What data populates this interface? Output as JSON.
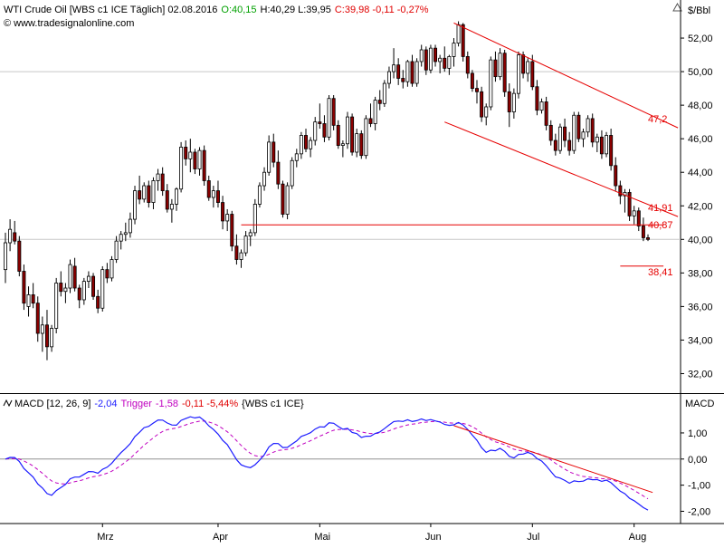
{
  "header": {
    "name": "WTI Crude Oil [WBS c1 ICE Täglich] 02.08.2016",
    "open": "O:40,15",
    "hl": "H:40,29 L:39,95",
    "close_change": "C:39,98 -0,11 -0,27%",
    "website": "© www.tradesignalonline.com",
    "unit": "$/Bbl"
  },
  "macd_header": {
    "label": "MACD [12, 26, 9]",
    "value": "-2,04",
    "trigger_label": "Trigger",
    "trigger_value": "-1,58",
    "change": "-0,11 -5,44%",
    "source": "{WBS c1 ICE}",
    "axis_title": "MACD"
  },
  "colors": {
    "bull": "#ffffff",
    "bear": "#8b0000",
    "candle_edge": "#000000",
    "trendline": "#e60000",
    "macd_line": "#1c1cff",
    "trigger_line": "#c000c0",
    "header_green": "#00a000",
    "header_red": "#e00000",
    "grid": "#c8c8c8"
  },
  "chart_data": [
    {
      "type": "candlestick",
      "title": "WTI Crude Oil [WBS c1 ICE Täglich] 02.08.2016",
      "ylabel": "$/Bbl",
      "ylim": [
        31,
        54
      ],
      "y_ticks": [
        "32,00",
        "34,00",
        "36,00",
        "38,00",
        "40,00",
        "42,00",
        "44,00",
        "46,00",
        "48,00",
        "50,00",
        "52,00"
      ],
      "x_ticks": [
        "Mrz",
        "Apr",
        "Mai",
        "Jun",
        "Jul",
        "Aug"
      ],
      "grid_lines_at": [
        40,
        50
      ],
      "annotations": [
        "47,2",
        "41,91",
        "40,87",
        "38,41"
      ],
      "candles": [
        [
          38.2,
          40.4,
          37.4,
          39.8
        ],
        [
          39.8,
          41.2,
          39.3,
          40.6
        ],
        [
          40.4,
          41.1,
          39.7,
          39.9
        ],
        [
          39.9,
          40.2,
          37.8,
          38.1
        ],
        [
          38.1,
          38.5,
          35.8,
          36.2
        ],
        [
          36.0,
          37.2,
          35.4,
          36.7
        ],
        [
          36.7,
          37.4,
          35.9,
          36.2
        ],
        [
          36.2,
          36.6,
          33.9,
          34.4
        ],
        [
          34.4,
          35.4,
          33.3,
          34.9
        ],
        [
          34.9,
          35.8,
          32.8,
          33.6
        ],
        [
          33.6,
          34.9,
          33.3,
          34.7
        ],
        [
          34.7,
          37.7,
          34.4,
          37.4
        ],
        [
          37.4,
          38.1,
          36.6,
          36.9
        ],
        [
          36.9,
          37.4,
          36.2,
          37.1
        ],
        [
          37.1,
          38.8,
          36.8,
          38.5
        ],
        [
          38.4,
          38.9,
          36.9,
          37.1
        ],
        [
          37.1,
          37.3,
          35.9,
          36.4
        ],
        [
          36.4,
          37.7,
          36.1,
          37.5
        ],
        [
          37.5,
          38.1,
          37.1,
          37.8
        ],
        [
          37.8,
          38.0,
          36.4,
          36.6
        ],
        [
          36.6,
          37.0,
          35.6,
          35.9
        ],
        [
          35.9,
          38.4,
          35.7,
          38.2
        ],
        [
          38.2,
          38.6,
          37.4,
          37.7
        ],
        [
          37.7,
          39.0,
          37.5,
          38.8
        ],
        [
          38.8,
          40.2,
          38.6,
          39.9
        ],
        [
          39.9,
          40.5,
          39.4,
          40.3
        ],
        [
          40.3,
          41.0,
          39.9,
          40.4
        ],
        [
          40.4,
          41.6,
          40.1,
          41.2
        ],
        [
          41.2,
          43.2,
          40.9,
          42.9
        ],
        [
          42.9,
          43.8,
          42.1,
          42.4
        ],
        [
          42.4,
          43.4,
          42.2,
          43.2
        ],
        [
          43.2,
          43.5,
          41.9,
          42.2
        ],
        [
          42.2,
          43.7,
          41.8,
          43.5
        ],
        [
          43.5,
          44.2,
          42.9,
          43.9
        ],
        [
          43.9,
          44.3,
          42.6,
          42.9
        ],
        [
          42.9,
          43.3,
          41.6,
          41.8
        ],
        [
          41.8,
          42.4,
          41.0,
          42.1
        ],
        [
          42.1,
          43.1,
          41.7,
          43.0
        ],
        [
          43.0,
          45.8,
          42.8,
          45.5
        ],
        [
          45.5,
          45.9,
          44.4,
          44.8
        ],
        [
          44.8,
          46.0,
          44.0,
          45.2
        ],
        [
          45.2,
          45.4,
          43.9,
          44.2
        ],
        [
          44.2,
          45.5,
          43.8,
          45.3
        ],
        [
          45.3,
          45.6,
          43.2,
          43.5
        ],
        [
          43.5,
          43.8,
          42.3,
          42.5
        ],
        [
          42.5,
          43.2,
          41.9,
          42.9
        ],
        [
          42.9,
          43.5,
          41.9,
          42.2
        ],
        [
          42.2,
          42.6,
          40.6,
          41.1
        ],
        [
          41.1,
          41.8,
          40.5,
          41.5
        ],
        [
          41.5,
          41.7,
          39.3,
          39.6
        ],
        [
          39.6,
          40.3,
          38.5,
          38.8
        ],
        [
          38.8,
          39.4,
          38.3,
          39.2
        ],
        [
          39.2,
          40.5,
          39.0,
          40.2
        ],
        [
          40.2,
          40.6,
          39.6,
          40.4
        ],
        [
          40.4,
          42.4,
          40.2,
          42.1
        ],
        [
          42.1,
          43.4,
          41.9,
          43.2
        ],
        [
          43.2,
          44.3,
          42.9,
          44.0
        ],
        [
          44.0,
          46.2,
          43.8,
          45.8
        ],
        [
          45.8,
          46.3,
          44.3,
          44.6
        ],
        [
          44.6,
          45.3,
          43.0,
          43.3
        ],
        [
          43.3,
          43.5,
          41.3,
          41.5
        ],
        [
          41.5,
          43.4,
          41.2,
          43.2
        ],
        [
          43.2,
          44.9,
          43.0,
          44.7
        ],
        [
          44.7,
          45.4,
          44.3,
          45.1
        ],
        [
          45.1,
          46.4,
          44.8,
          46.2
        ],
        [
          46.2,
          46.6,
          45.2,
          45.4
        ],
        [
          45.4,
          46.1,
          44.9,
          45.9
        ],
        [
          45.9,
          47.3,
          45.6,
          47.0
        ],
        [
          47.0,
          48.1,
          46.6,
          46.9
        ],
        [
          46.9,
          47.4,
          45.8,
          46.1
        ],
        [
          46.1,
          48.6,
          45.9,
          48.4
        ],
        [
          48.4,
          48.6,
          46.5,
          46.8
        ],
        [
          46.8,
          47.1,
          45.4,
          45.6
        ],
        [
          45.6,
          45.9,
          44.9,
          45.7
        ],
        [
          45.7,
          47.6,
          45.4,
          47.3
        ],
        [
          47.3,
          47.5,
          45.0,
          45.2
        ],
        [
          45.2,
          46.6,
          44.9,
          46.3
        ],
        [
          46.3,
          46.5,
          44.8,
          45.0
        ],
        [
          45.0,
          47.4,
          44.8,
          47.2
        ],
        [
          47.2,
          48.1,
          46.7,
          46.9
        ],
        [
          46.9,
          48.5,
          46.5,
          48.3
        ],
        [
          48.3,
          48.9,
          47.7,
          48.1
        ],
        [
          48.1,
          49.5,
          47.9,
          49.3
        ],
        [
          49.3,
          50.3,
          49.0,
          50.0
        ],
        [
          50.0,
          51.4,
          49.6,
          50.4
        ],
        [
          50.4,
          50.8,
          49.2,
          49.6
        ],
        [
          49.6,
          50.1,
          49.0,
          49.4
        ],
        [
          49.4,
          50.7,
          49.1,
          50.6
        ],
        [
          50.6,
          51.0,
          49.1,
          49.3
        ],
        [
          49.3,
          50.8,
          49.1,
          50.6
        ],
        [
          50.6,
          51.6,
          50.3,
          51.3
        ],
        [
          51.3,
          51.5,
          49.8,
          50.1
        ],
        [
          50.1,
          51.6,
          49.9,
          51.4
        ],
        [
          51.4,
          51.6,
          50.3,
          50.6
        ],
        [
          50.6,
          51.0,
          49.9,
          50.8
        ],
        [
          50.8,
          51.5,
          50.0,
          50.2
        ],
        [
          50.2,
          51.0,
          49.8,
          50.9
        ],
        [
          50.9,
          52.0,
          50.3,
          51.7
        ],
        [
          51.7,
          53.0,
          51.5,
          52.8
        ],
        [
          52.8,
          52.9,
          50.6,
          50.9
        ],
        [
          50.9,
          51.2,
          49.6,
          49.9
        ],
        [
          49.9,
          50.1,
          48.8,
          49.0
        ],
        [
          49.0,
          49.5,
          48.1,
          48.8
        ],
        [
          48.8,
          49.1,
          47.0,
          47.3
        ],
        [
          47.3,
          48.1,
          46.8,
          47.9
        ],
        [
          47.9,
          50.9,
          47.7,
          50.7
        ],
        [
          50.7,
          51.2,
          49.4,
          49.7
        ],
        [
          49.7,
          51.4,
          49.5,
          51.1
        ],
        [
          51.1,
          51.3,
          48.5,
          48.8
        ],
        [
          48.8,
          49.3,
          46.7,
          47.6
        ],
        [
          47.6,
          49.0,
          47.2,
          48.7
        ],
        [
          48.7,
          51.2,
          48.4,
          51.0
        ],
        [
          51.0,
          51.2,
          49.6,
          49.9
        ],
        [
          49.9,
          50.8,
          49.4,
          50.6
        ],
        [
          50.6,
          51.0,
          48.9,
          49.1
        ],
        [
          49.1,
          49.5,
          47.4,
          47.7
        ],
        [
          47.7,
          48.4,
          47.5,
          48.2
        ],
        [
          48.2,
          48.5,
          46.5,
          46.8
        ],
        [
          46.8,
          47.1,
          45.6,
          45.9
        ],
        [
          45.9,
          46.3,
          45.0,
          45.3
        ],
        [
          45.3,
          46.9,
          45.1,
          46.7
        ],
        [
          46.7,
          47.2,
          45.5,
          45.9
        ],
        [
          45.9,
          46.4,
          45.0,
          45.3
        ],
        [
          45.3,
          47.6,
          45.1,
          47.4
        ],
        [
          47.4,
          47.6,
          45.8,
          46.0
        ],
        [
          46.0,
          46.6,
          45.5,
          46.4
        ],
        [
          46.4,
          47.4,
          46.1,
          47.2
        ],
        [
          47.2,
          47.5,
          45.5,
          45.8
        ],
        [
          45.8,
          46.3,
          45.2,
          46.1
        ],
        [
          46.1,
          46.5,
          44.8,
          45.1
        ],
        [
          45.1,
          46.4,
          44.9,
          46.2
        ],
        [
          46.2,
          46.6,
          44.1,
          44.4
        ],
        [
          44.4,
          44.9,
          42.9,
          43.2
        ],
        [
          43.2,
          43.5,
          42.1,
          42.6
        ],
        [
          42.6,
          43.0,
          41.6,
          42.8
        ],
        [
          42.8,
          43.0,
          41.1,
          41.4
        ],
        [
          41.4,
          42.0,
          40.9,
          41.7
        ],
        [
          41.7,
          41.9,
          40.5,
          40.8
        ],
        [
          40.8,
          41.3,
          39.9,
          40.1
        ],
        [
          40.1,
          40.3,
          39.9,
          40.0
        ]
      ],
      "level_lines": [
        {
          "label": "",
          "y": 40.87,
          "from_index": 51,
          "to_index": 140
        },
        {
          "label": "",
          "y": 38.41,
          "from_index": 133,
          "to_index": 140
        }
      ],
      "trendlines": [
        {
          "from": [
            97,
            52.9
          ],
          "to": [
            140,
            47.2
          ]
        },
        {
          "from": [
            95,
            47.0
          ],
          "to": [
            140,
            41.91
          ]
        }
      ]
    },
    {
      "type": "line",
      "title": "MACD [12, 26, 9]",
      "ylabel": "MACD",
      "ylim": [
        -2.4,
        1.9
      ],
      "y_ticks": [
        "1,00",
        "0,00",
        "-1,00",
        "-2,00"
      ],
      "grid_lines_at": [
        0
      ],
      "series": [
        {
          "name": "MACD",
          "style": "solid",
          "values": []
        },
        {
          "name": "Trigger",
          "style": "dashed",
          "values": []
        }
      ],
      "trendline": {
        "from": [
          97,
          1.28
        ],
        "to": [
          140,
          -1.28
        ]
      }
    }
  ]
}
